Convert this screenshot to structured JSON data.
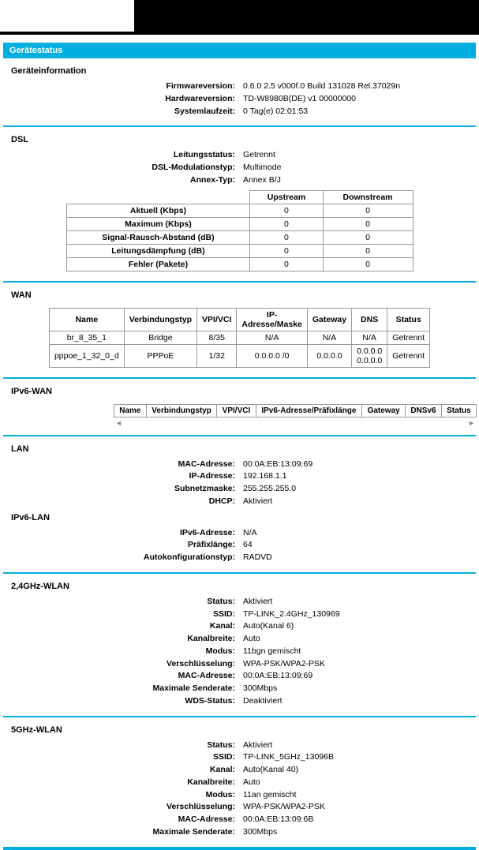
{
  "header": {
    "title": "Gerätestatus"
  },
  "deviceInfo": {
    "title": "Geräteinformation",
    "rows": [
      {
        "label": "Firmwareversion:",
        "value": "0.6.0 2.5 v000f.0 Build 131028 Rel.37029n"
      },
      {
        "label": "Hardwareversion:",
        "value": "TD-W8980B(DE) v1 00000000"
      },
      {
        "label": "Systemlaufzeit:",
        "value": "0 Tag(e) 02:01:53"
      }
    ]
  },
  "dsl": {
    "title": "DSL",
    "rows": [
      {
        "label": "Leitungsstatus:",
        "value": "Getrennt"
      },
      {
        "label": "DSL-Modulationstyp:",
        "value": "Multimode"
      },
      {
        "label": "Annex-Typ:",
        "value": "Annex B/J"
      }
    ],
    "table": {
      "headers": [
        "",
        "Upstream",
        "Downstream"
      ],
      "metrics": [
        {
          "label": "Aktuell (Kbps)",
          "up": "0",
          "down": "0"
        },
        {
          "label": "Maximum (Kbps)",
          "up": "0",
          "down": "0"
        },
        {
          "label": "Signal-Rausch-Abstand (dB)",
          "up": "0",
          "down": "0"
        },
        {
          "label": "Leitungsdämpfung (dB)",
          "up": "0",
          "down": "0"
        },
        {
          "label": "Fehler (Pakete)",
          "up": "0",
          "down": "0"
        }
      ]
    }
  },
  "wan": {
    "title": "WAN",
    "headers": [
      "Name",
      "Verbindungstyp",
      "VPI/VCI",
      "IP-Adresse/Maske",
      "Gateway",
      "DNS",
      "Status"
    ],
    "rows": [
      {
        "name": "br_8_35_1",
        "type": "Bridge",
        "vpi": "8/35",
        "ip": "N/A",
        "gw": "N/A",
        "dns": "N/A",
        "status": "Getrennt"
      },
      {
        "name": "pppoe_1_32_0_d",
        "type": "PPPoE",
        "vpi": "1/32",
        "ip": "0.0.0.0 /0",
        "gw": "0.0.0.0",
        "dns": "0.0.0.0 0.0.0.0",
        "status": "Getrennt"
      }
    ]
  },
  "ipv6wan": {
    "title": "IPv6-WAN",
    "headers": [
      "Name",
      "Verbindungstyp",
      "VPI/VCI",
      "IPv6-Adresse/Präfixlänge",
      "Gateway",
      "DNSv6",
      "Status"
    ]
  },
  "lan": {
    "title": "LAN",
    "rows": [
      {
        "label": "MAC-Adresse:",
        "value": "00:0A:EB:13:09:69"
      },
      {
        "label": "IP-Adresse:",
        "value": "192.168.1.1"
      },
      {
        "label": "Subnetzmaske:",
        "value": "255.255.255.0"
      },
      {
        "label": "DHCP:",
        "value": "Aktiviert"
      }
    ]
  },
  "ipv6lan": {
    "title": "IPv6-LAN",
    "rows": [
      {
        "label": "IPv6-Adresse:",
        "value": "N/A"
      },
      {
        "label": "Präfixlänge:",
        "value": "64"
      },
      {
        "label": "Autokonfigurationstyp:",
        "value": "RADVD"
      }
    ]
  },
  "wlan24": {
    "title": "2,4GHz-WLAN",
    "rows": [
      {
        "label": "Status:",
        "value": "Aktiviert"
      },
      {
        "label": "SSID:",
        "value": "TP-LINK_2.4GHz_130969"
      },
      {
        "label": "Kanal:",
        "value": "Auto(Kanal 6)"
      },
      {
        "label": "Kanalbreite:",
        "value": "Auto"
      },
      {
        "label": "Modus:",
        "value": "11bgn gemischt"
      },
      {
        "label": "Verschlüsselung:",
        "value": "WPA-PSK/WPA2-PSK"
      },
      {
        "label": "MAC-Adresse:",
        "value": "00:0A:EB:13:09:69"
      },
      {
        "label": "Maximale Senderate:",
        "value": "300Mbps"
      },
      {
        "label": "WDS-Status:",
        "value": "Deaktiviert"
      }
    ]
  },
  "wlan5": {
    "title": "5GHz-WLAN",
    "rows": [
      {
        "label": "Status:",
        "value": "Aktiviert"
      },
      {
        "label": "SSID:",
        "value": "TP-LINK_5GHz_13096B"
      },
      {
        "label": "Kanal:",
        "value": "Auto(Kanal 40)"
      },
      {
        "label": "Kanalbreite:",
        "value": "Auto"
      },
      {
        "label": "Modus:",
        "value": "11an gemischt"
      },
      {
        "label": "Verschlüsselung:",
        "value": "WPA-PSK/WPA2-PSK"
      },
      {
        "label": "MAC-Adresse:",
        "value": "00:0A:EB:13:09:6B"
      },
      {
        "label": "Maximale Senderate:",
        "value": "300Mbps"
      }
    ]
  },
  "colors": {
    "accent": "#00aee0",
    "border": "#999999",
    "text": "#000000",
    "background": "#ffffff"
  }
}
